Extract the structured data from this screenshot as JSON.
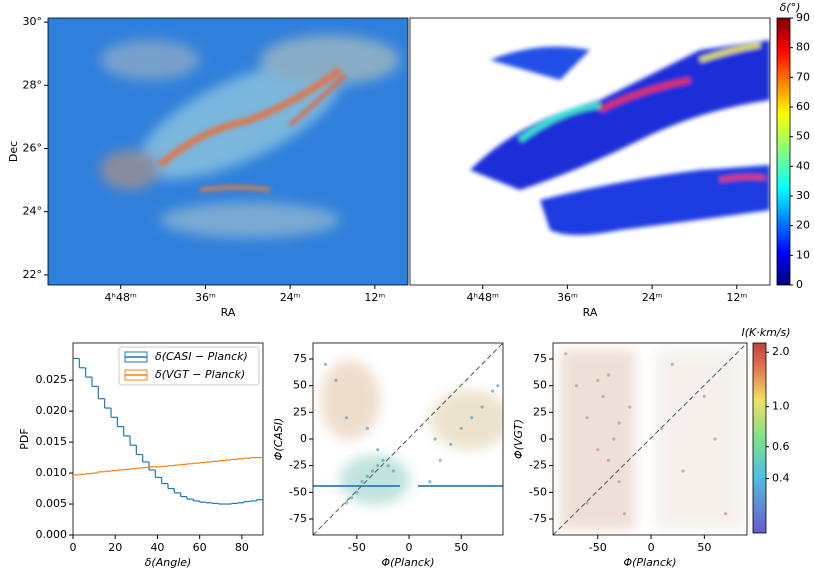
{
  "chart_data": [
    {
      "type": "image",
      "xlabel": "RA",
      "ylabel": "Dec",
      "xlim": [
        298.3,
        247.3
      ],
      "xticks": [
        {
          "value": 288,
          "label": "4ʰ48ᵐ"
        },
        {
          "value": 276,
          "label": "36ᵐ"
        },
        {
          "value": 264,
          "label": "24ᵐ"
        },
        {
          "value": 252,
          "label": "12ᵐ"
        }
      ],
      "ylim": [
        21.68,
        30.13
      ],
      "yticks": [
        {
          "value": 22,
          "label": "22°"
        },
        {
          "value": 24,
          "label": "24°"
        },
        {
          "value": 26,
          "label": "26°"
        },
        {
          "value": 28,
          "label": "28°"
        },
        {
          "value": 30,
          "label": "30°"
        }
      ]
    },
    {
      "type": "image",
      "xlabel": "RA",
      "xlim": [
        298.3,
        247.3
      ],
      "xticks": [
        {
          "value": 288,
          "label": "4ʰ48ᵐ"
        },
        {
          "value": 276,
          "label": "36ᵐ"
        },
        {
          "value": 264,
          "label": "24ᵐ"
        },
        {
          "value": 252,
          "label": "12ᵐ"
        }
      ],
      "colorbar": {
        "title": "δ(°)",
        "colormap": "jet",
        "lim": [
          0,
          90
        ],
        "ticks": [
          0,
          10,
          20,
          30,
          40,
          50,
          60,
          70,
          80,
          90
        ]
      }
    },
    {
      "type": "histogram",
      "xlabel": "δ(Angle)",
      "ylabel": "PDF",
      "legend": "upper right",
      "bins": [
        0,
        3,
        6,
        9,
        12,
        15,
        18,
        21,
        24,
        27,
        30,
        33,
        36,
        39,
        42,
        45,
        48,
        51,
        54,
        57,
        60,
        63,
        66,
        69,
        72,
        75,
        78,
        81,
        84,
        87,
        90
      ],
      "series": [
        {
          "name": "δ(CASI − Planck)",
          "color": "#1f77b4",
          "values": [
            0.0285,
            0.027,
            0.0255,
            0.024,
            0.022,
            0.0205,
            0.019,
            0.0175,
            0.016,
            0.0145,
            0.013,
            0.0118,
            0.0105,
            0.0093,
            0.0083,
            0.0075,
            0.0068,
            0.0062,
            0.0058,
            0.0055,
            0.0053,
            0.0052,
            0.0051,
            0.005,
            0.005,
            0.0051,
            0.0052,
            0.0054,
            0.0055,
            0.0057
          ]
        },
        {
          "name": "δ(VGT − Planck)",
          "color": "#ff7f0e",
          "values": [
            0.0097,
            0.0098,
            0.0099,
            0.01,
            0.0102,
            0.0103,
            0.0104,
            0.0105,
            0.0106,
            0.0107,
            0.0108,
            0.0109,
            0.011,
            0.011,
            0.0111,
            0.0112,
            0.0113,
            0.0114,
            0.0115,
            0.0116,
            0.0117,
            0.0118,
            0.0119,
            0.012,
            0.0121,
            0.0122,
            0.0123,
            0.0124,
            0.0125,
            0.0125
          ]
        }
      ],
      "xlim": [
        0,
        90
      ],
      "xticks": [
        0,
        20,
        40,
        60,
        80
      ],
      "ylim": [
        0,
        0.031
      ],
      "yticks": [
        {
          "value": 0,
          "label": "0.000"
        },
        {
          "value": 0.005,
          "label": "0.005"
        },
        {
          "value": 0.01,
          "label": "0.010"
        },
        {
          "value": 0.015,
          "label": "0.015"
        },
        {
          "value": 0.02,
          "label": "0.020"
        },
        {
          "value": 0.025,
          "label": "0.025"
        }
      ]
    },
    {
      "type": "scatter",
      "xlabel": "Φ(Planck)",
      "ylabel": "Φ(CASI)",
      "color": "#4a90b8",
      "x": [
        -80,
        -70,
        -60,
        -55,
        -50,
        -45,
        -40,
        -35,
        -30,
        -25,
        -20,
        -15,
        -60,
        -40,
        -30,
        20,
        30,
        40,
        50,
        60,
        70,
        80,
        85,
        25
      ],
      "values": [
        70,
        55,
        -60,
        -55,
        -50,
        -40,
        -35,
        -30,
        -25,
        -20,
        -25,
        -30,
        20,
        10,
        -10,
        -40,
        -20,
        -5,
        10,
        20,
        30,
        45,
        50,
        0
      ],
      "xlim": [
        -92,
        90
      ],
      "xticks": [
        -50,
        0,
        50
      ],
      "ylim": [
        -90,
        90
      ],
      "yticks": [
        -75,
        -50,
        -25,
        0,
        25,
        50,
        75
      ]
    },
    {
      "type": "scatter",
      "xlabel": "Φ(Planck)",
      "ylabel": "Φ(VGT)",
      "color": "#c87a6a",
      "x": [
        -80,
        -70,
        -60,
        -50,
        -45,
        -40,
        -35,
        -30,
        -25,
        -20,
        -60,
        -50,
        -40,
        -30,
        10,
        30,
        50,
        70,
        20,
        60
      ],
      "values": [
        80,
        50,
        20,
        -10,
        40,
        60,
        0,
        -40,
        -70,
        30,
        -60,
        55,
        -20,
        15,
        10,
        -30,
        40,
        -70,
        70,
        0
      ],
      "xlim": [
        -92,
        90
      ],
      "xticks": [
        -50,
        0,
        50
      ],
      "ylim": [
        -90,
        90
      ],
      "yticks": [
        -75,
        -50,
        -25,
        0,
        25,
        50,
        75
      ],
      "colorbar": {
        "title": "I(K·km/s)",
        "log": true,
        "lim": [
          0.2,
          2.25
        ],
        "ticks": [
          0.4,
          0.6,
          {
            "value": 1,
            "label": "1.0"
          },
          {
            "value": 2,
            "label": "2.0"
          }
        ]
      }
    }
  ]
}
